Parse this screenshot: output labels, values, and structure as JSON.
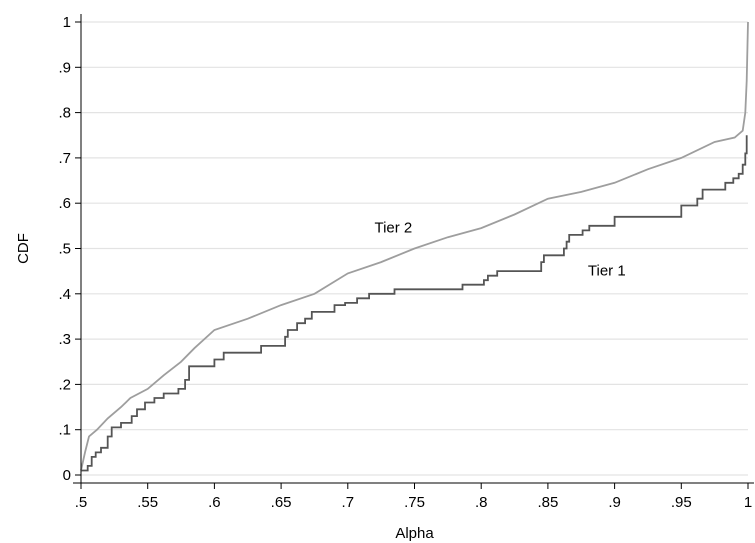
{
  "chart_data": {
    "type": "line",
    "step": true,
    "title": "",
    "xlabel": "Alpha",
    "ylabel": "CDF",
    "xlim": [
      0.5,
      1.0
    ],
    "ylim": [
      0,
      1
    ],
    "grid": true,
    "legend": "none",
    "x_ticks": [
      0.5,
      0.55,
      0.6,
      0.65,
      0.7,
      0.75,
      0.8,
      0.85,
      0.9,
      0.95,
      1.0
    ],
    "x_tick_labels": [
      ".5",
      ".55",
      ".6",
      ".65",
      ".7",
      ".75",
      ".8",
      ".85",
      ".9",
      ".95",
      "1"
    ],
    "y_ticks": [
      0,
      0.1,
      0.2,
      0.3,
      0.4,
      0.5,
      0.6,
      0.7,
      0.8,
      0.9,
      1.0
    ],
    "y_tick_labels": [
      "0",
      ".1",
      ".2",
      ".3",
      ".4",
      ".5",
      ".6",
      ".7",
      ".8",
      ".9",
      "1"
    ],
    "colors": {
      "tier1": "#555555",
      "tier2": "#9e9e9e",
      "grid": "#e3e3e3",
      "axis": "#000000"
    },
    "series": [
      {
        "name": "Tier 1",
        "color_key": "tier1",
        "label_at": [
          0.88,
          0.44
        ],
        "points": [
          [
            0.5,
            0.01
          ],
          [
            0.505,
            0.01
          ],
          [
            0.505,
            0.02
          ],
          [
            0.508,
            0.02
          ],
          [
            0.508,
            0.04
          ],
          [
            0.511,
            0.04
          ],
          [
            0.511,
            0.05
          ],
          [
            0.515,
            0.05
          ],
          [
            0.515,
            0.06
          ],
          [
            0.52,
            0.06
          ],
          [
            0.52,
            0.085
          ],
          [
            0.523,
            0.085
          ],
          [
            0.523,
            0.105
          ],
          [
            0.53,
            0.105
          ],
          [
            0.53,
            0.115
          ],
          [
            0.538,
            0.115
          ],
          [
            0.538,
            0.13
          ],
          [
            0.542,
            0.13
          ],
          [
            0.542,
            0.145
          ],
          [
            0.548,
            0.145
          ],
          [
            0.548,
            0.16
          ],
          [
            0.555,
            0.16
          ],
          [
            0.555,
            0.17
          ],
          [
            0.562,
            0.17
          ],
          [
            0.562,
            0.18
          ],
          [
            0.573,
            0.18
          ],
          [
            0.573,
            0.19
          ],
          [
            0.578,
            0.19
          ],
          [
            0.578,
            0.21
          ],
          [
            0.581,
            0.21
          ],
          [
            0.581,
            0.24
          ],
          [
            0.6,
            0.24
          ],
          [
            0.6,
            0.255
          ],
          [
            0.607,
            0.255
          ],
          [
            0.607,
            0.27
          ],
          [
            0.635,
            0.27
          ],
          [
            0.635,
            0.285
          ],
          [
            0.653,
            0.285
          ],
          [
            0.653,
            0.305
          ],
          [
            0.655,
            0.305
          ],
          [
            0.655,
            0.32
          ],
          [
            0.662,
            0.32
          ],
          [
            0.662,
            0.335
          ],
          [
            0.668,
            0.335
          ],
          [
            0.668,
            0.345
          ],
          [
            0.673,
            0.345
          ],
          [
            0.673,
            0.36
          ],
          [
            0.69,
            0.36
          ],
          [
            0.69,
            0.375
          ],
          [
            0.698,
            0.375
          ],
          [
            0.698,
            0.38
          ],
          [
            0.707,
            0.38
          ],
          [
            0.707,
            0.39
          ],
          [
            0.716,
            0.39
          ],
          [
            0.716,
            0.4
          ],
          [
            0.735,
            0.4
          ],
          [
            0.735,
            0.41
          ],
          [
            0.786,
            0.41
          ],
          [
            0.786,
            0.42
          ],
          [
            0.802,
            0.42
          ],
          [
            0.802,
            0.43
          ],
          [
            0.805,
            0.43
          ],
          [
            0.805,
            0.44
          ],
          [
            0.812,
            0.44
          ],
          [
            0.812,
            0.45
          ],
          [
            0.845,
            0.45
          ],
          [
            0.845,
            0.47
          ],
          [
            0.847,
            0.47
          ],
          [
            0.847,
            0.485
          ],
          [
            0.862,
            0.485
          ],
          [
            0.862,
            0.5
          ],
          [
            0.864,
            0.5
          ],
          [
            0.864,
            0.515
          ],
          [
            0.866,
            0.515
          ],
          [
            0.866,
            0.53
          ],
          [
            0.876,
            0.53
          ],
          [
            0.876,
            0.54
          ],
          [
            0.881,
            0.54
          ],
          [
            0.881,
            0.55
          ],
          [
            0.9,
            0.55
          ],
          [
            0.9,
            0.57
          ],
          [
            0.95,
            0.57
          ],
          [
            0.95,
            0.595
          ],
          [
            0.962,
            0.595
          ],
          [
            0.962,
            0.61
          ],
          [
            0.966,
            0.61
          ],
          [
            0.966,
            0.63
          ],
          [
            0.983,
            0.63
          ],
          [
            0.983,
            0.645
          ],
          [
            0.989,
            0.645
          ],
          [
            0.989,
            0.655
          ],
          [
            0.993,
            0.655
          ],
          [
            0.993,
            0.665
          ],
          [
            0.996,
            0.665
          ],
          [
            0.996,
            0.685
          ],
          [
            0.998,
            0.685
          ],
          [
            0.998,
            0.71
          ],
          [
            0.999,
            0.71
          ],
          [
            0.999,
            0.75
          ]
        ]
      },
      {
        "name": "Tier 2",
        "color_key": "tier2",
        "label_at": [
          0.72,
          0.535
        ],
        "points": [
          [
            0.5,
            0.01
          ],
          [
            0.503,
            0.05
          ],
          [
            0.506,
            0.085
          ],
          [
            0.512,
            0.1
          ],
          [
            0.52,
            0.125
          ],
          [
            0.53,
            0.15
          ],
          [
            0.537,
            0.17
          ],
          [
            0.55,
            0.19
          ],
          [
            0.562,
            0.22
          ],
          [
            0.575,
            0.25
          ],
          [
            0.585,
            0.28
          ],
          [
            0.6,
            0.32
          ],
          [
            0.625,
            0.345
          ],
          [
            0.65,
            0.375
          ],
          [
            0.675,
            0.4
          ],
          [
            0.7,
            0.445
          ],
          [
            0.725,
            0.47
          ],
          [
            0.75,
            0.5
          ],
          [
            0.775,
            0.525
          ],
          [
            0.8,
            0.545
          ],
          [
            0.825,
            0.575
          ],
          [
            0.85,
            0.61
          ],
          [
            0.875,
            0.625
          ],
          [
            0.9,
            0.645
          ],
          [
            0.925,
            0.675
          ],
          [
            0.95,
            0.7
          ],
          [
            0.975,
            0.735
          ],
          [
            0.99,
            0.745
          ],
          [
            0.996,
            0.76
          ],
          [
            0.998,
            0.8
          ],
          [
            0.999,
            0.87
          ],
          [
            1.0,
            1.0
          ]
        ]
      }
    ]
  }
}
